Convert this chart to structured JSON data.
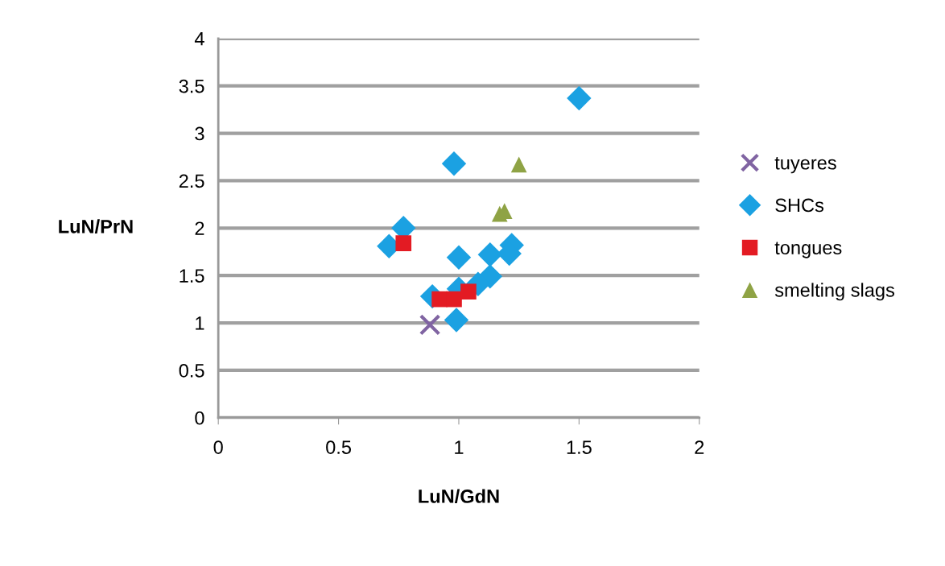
{
  "chart_data": {
    "type": "scatter",
    "xlabel": "LuN/GdN",
    "ylabel": "LuN/PrN",
    "xlim": [
      0,
      2
    ],
    "xticks": [
      0,
      0.5,
      1,
      1.5,
      2
    ],
    "ylim": [
      0,
      4
    ],
    "yticks": [
      0,
      0.5,
      1,
      1.5,
      2,
      2.5,
      3,
      3.5,
      4
    ],
    "grid": "y",
    "legend": "right",
    "series": [
      {
        "name": "tuyeres",
        "color": "#8064a2",
        "marker": "cross",
        "x": [
          0.88
        ],
        "values": [
          0.98
        ]
      },
      {
        "name": "SHCs",
        "color": "#1ba1e2",
        "marker": "diamond",
        "x": [
          0.98,
          0.77,
          0.71,
          1.0,
          1.13,
          1.22,
          1.21,
          1.13,
          1.08,
          0.89,
          0.99,
          1.0,
          1.5
        ],
        "values": [
          2.68,
          2.0,
          1.81,
          1.69,
          1.72,
          1.82,
          1.73,
          1.49,
          1.41,
          1.28,
          1.03,
          1.36,
          3.37
        ]
      },
      {
        "name": "tongues",
        "color": "#e31b23",
        "marker": "square",
        "x": [
          0.77,
          0.92,
          0.98,
          1.04
        ],
        "values": [
          1.84,
          1.25,
          1.25,
          1.33
        ]
      },
      {
        "name": "smelting slags",
        "color": "#8fa345",
        "marker": "triangle",
        "x": [
          1.25,
          1.17,
          1.19
        ],
        "values": [
          2.67,
          2.15,
          2.18
        ]
      }
    ]
  }
}
